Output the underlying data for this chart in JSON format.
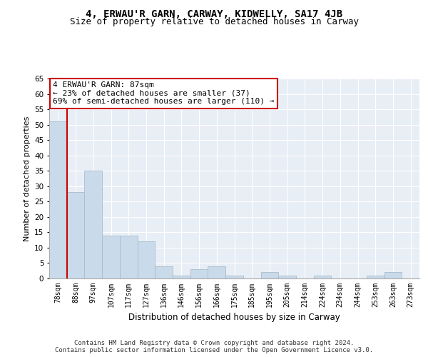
{
  "title": "4, ERWAU'R GARN, CARWAY, KIDWELLY, SA17 4JB",
  "subtitle": "Size of property relative to detached houses in Carway",
  "xlabel": "Distribution of detached houses by size in Carway",
  "ylabel": "Number of detached properties",
  "categories": [
    "78sqm",
    "88sqm",
    "97sqm",
    "107sqm",
    "117sqm",
    "127sqm",
    "136sqm",
    "146sqm",
    "156sqm",
    "166sqm",
    "175sqm",
    "185sqm",
    "195sqm",
    "205sqm",
    "214sqm",
    "224sqm",
    "234sqm",
    "244sqm",
    "253sqm",
    "263sqm",
    "273sqm"
  ],
  "values": [
    51,
    28,
    35,
    14,
    14,
    12,
    4,
    1,
    3,
    4,
    1,
    0,
    2,
    1,
    0,
    1,
    0,
    0,
    1,
    2,
    0
  ],
  "bar_color": "#c9daea",
  "bar_edgecolor": "#aabccc",
  "highlight_index": 1,
  "highlight_line_color": "#cc0000",
  "annotation_text": "4 ERWAU'R GARN: 87sqm\n← 23% of detached houses are smaller (37)\n69% of semi-detached houses are larger (110) →",
  "annotation_box_color": "#ffffff",
  "annotation_box_edgecolor": "#cc0000",
  "ylim": [
    0,
    65
  ],
  "yticks": [
    0,
    5,
    10,
    15,
    20,
    25,
    30,
    35,
    40,
    45,
    50,
    55,
    60,
    65
  ],
  "plot_background": "#e8eef5",
  "grid_color": "#ffffff",
  "title_fontsize": 10,
  "subtitle_fontsize": 9,
  "footer_text": "Contains HM Land Registry data © Crown copyright and database right 2024.\nContains public sector information licensed under the Open Government Licence v3.0.",
  "footer_fontsize": 6.5
}
